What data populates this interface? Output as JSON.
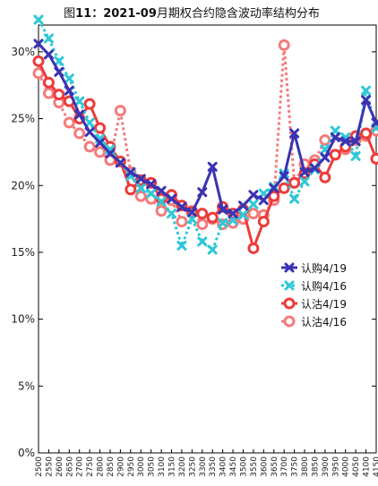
{
  "chart_data": {
    "type": "line",
    "title_prefix": "图",
    "title_num": "11：2021-09",
    "title_suffix": "月期权合约隐含波动率结构分布",
    "ylim": [
      0,
      0.32
    ],
    "yticks": [
      0,
      0.05,
      0.1,
      0.15,
      0.2,
      0.25,
      0.3
    ],
    "ytick_labels": [
      "0%",
      "5%",
      "10%",
      "15%",
      "20%",
      "25%",
      "30%"
    ],
    "x": [
      "2500",
      "2550",
      "2600",
      "2650",
      "2700",
      "2750",
      "2800",
      "2850",
      "2900",
      "2950",
      "3000",
      "3050",
      "3100",
      "3150",
      "3200",
      "3250",
      "3300",
      "3350",
      "3400",
      "3450",
      "3500",
      "3550",
      "3600",
      "3650",
      "3700",
      "3750",
      "3800",
      "3850",
      "3900",
      "3950",
      "4000",
      "4050",
      "4100",
      "4150"
    ],
    "series": [
      {
        "name": "认购4/19",
        "color": "#3a33b3",
        "style": "solid-x",
        "values": [
          0.306,
          0.298,
          0.285,
          0.271,
          0.253,
          0.24,
          0.232,
          0.224,
          0.217,
          0.21,
          0.205,
          0.201,
          0.196,
          0.19,
          0.184,
          0.18,
          0.195,
          0.214,
          0.182,
          0.179,
          0.185,
          0.193,
          0.189,
          0.198,
          0.207,
          0.239,
          0.21,
          0.213,
          0.221,
          0.236,
          0.233,
          0.233,
          0.264,
          0.247
        ]
      },
      {
        "name": "认购4/16",
        "color": "#2ec8d8",
        "style": "dotted-x",
        "values": [
          0.324,
          0.31,
          0.293,
          0.28,
          0.263,
          0.247,
          0.235,
          0.227,
          0.217,
          0.207,
          0.198,
          0.194,
          0.188,
          0.179,
          0.155,
          0.175,
          0.158,
          0.152,
          0.172,
          0.174,
          0.178,
          0.186,
          0.194,
          0.199,
          0.209,
          0.19,
          0.203,
          0.212,
          0.227,
          0.241,
          0.236,
          0.222,
          0.271,
          0.243
        ]
      },
      {
        "name": "认沽4/19",
        "color": "#ee3b3b",
        "style": "solid-o",
        "values": [
          0.293,
          0.277,
          0.268,
          0.263,
          0.25,
          0.261,
          0.243,
          0.229,
          0.218,
          0.197,
          0.204,
          0.202,
          0.19,
          0.193,
          0.185,
          0.18,
          0.179,
          0.176,
          0.184,
          0.179,
          0.182,
          0.153,
          0.173,
          0.192,
          0.198,
          0.202,
          0.209,
          0.216,
          0.206,
          0.223,
          0.229,
          0.237,
          0.239,
          0.22
        ]
      },
      {
        "name": "认沽4/16",
        "color": "#f47b7b",
        "style": "dotted-o",
        "values": [
          0.284,
          0.269,
          0.262,
          0.247,
          0.239,
          0.229,
          0.225,
          0.219,
          0.256,
          0.21,
          0.192,
          0.19,
          0.181,
          0.189,
          0.173,
          0.181,
          0.171,
          0.175,
          0.171,
          0.172,
          0.175,
          0.179,
          0.178,
          0.189,
          0.305,
          0.202,
          0.216,
          0.219,
          0.234,
          0.223,
          0.227,
          0.234,
          0.237,
          0.241
        ]
      }
    ],
    "legend_position": "right"
  }
}
